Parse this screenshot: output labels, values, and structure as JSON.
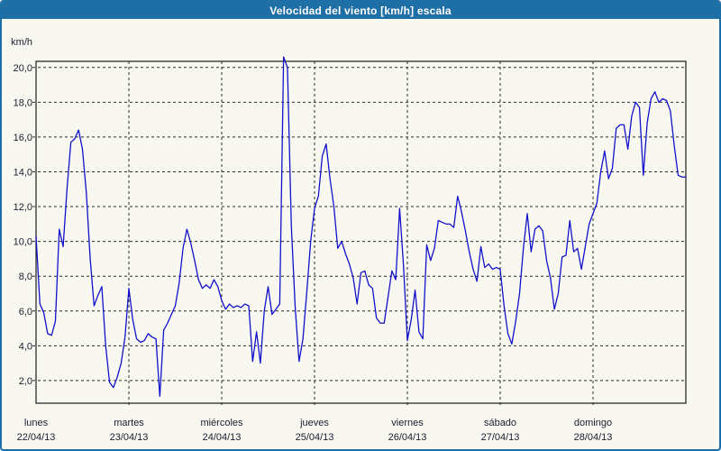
{
  "window": {
    "title": "Velocidad del viento [km/h] escala"
  },
  "colors": {
    "titlebar_bg": "#1d6fa5",
    "titlebar_text": "#ffffff",
    "panel_bg": "#f8f8f1",
    "panel_border": "#1d6fa5",
    "plot_border": "#1a1a1a",
    "grid": "#2b2b2b",
    "axis_text": "#1c1c30",
    "line": "#1212cc"
  },
  "chart_data": {
    "type": "line",
    "title": "Velocidad del viento [km/h] escala",
    "ylabel": "km/h",
    "grid": "dashed",
    "legend": "none",
    "y_axis": {
      "min": 0.7,
      "max": 20.35,
      "tick_step": 2,
      "ticks": [
        20,
        18,
        16,
        14,
        12,
        10,
        8,
        6,
        4,
        2
      ],
      "tick_labels": [
        "20,0",
        "18,0",
        "16,0",
        "14,0",
        "12,0",
        "10,0",
        "8,0",
        "6,0",
        "4,0",
        "2,0"
      ]
    },
    "x_axis": {
      "unit": "hours",
      "samples_per_day": 24,
      "days": [
        {
          "name": "lunes",
          "date": "22/04/13"
        },
        {
          "name": "martes",
          "date": "23/04/13"
        },
        {
          "name": "miércoles",
          "date": "24/04/13"
        },
        {
          "name": "jueves",
          "date": "25/04/13"
        },
        {
          "name": "viernes",
          "date": "26/04/13"
        },
        {
          "name": "sábado",
          "date": "27/04/13"
        },
        {
          "name": "domingo",
          "date": "28/04/13"
        }
      ]
    },
    "series": [
      {
        "name": "Velocidad del viento",
        "unit": "km/h",
        "values": [
          10.3,
          6.4,
          5.9,
          4.7,
          4.6,
          5.4,
          10.7,
          9.7,
          13.0,
          15.7,
          15.9,
          16.4,
          15.3,
          12.8,
          9.0,
          6.3,
          6.9,
          7.4,
          4.0,
          1.9,
          1.6,
          2.2,
          3.0,
          4.5,
          7.3,
          5.5,
          4.4,
          4.2,
          4.3,
          4.7,
          4.5,
          4.4,
          1.1,
          4.9,
          5.3,
          5.8,
          6.3,
          7.6,
          9.6,
          10.7,
          9.9,
          8.9,
          7.8,
          7.3,
          7.5,
          7.3,
          7.8,
          7.4,
          6.6,
          6.1,
          6.4,
          6.2,
          6.3,
          6.2,
          6.4,
          6.3,
          3.1,
          4.8,
          3.0,
          6.0,
          7.4,
          5.8,
          6.1,
          6.4,
          20.6,
          20.0,
          10.9,
          6.2,
          3.1,
          4.4,
          7.1,
          10.0,
          11.9,
          12.6,
          14.9,
          15.6,
          13.6,
          12.0,
          9.6,
          10.0,
          9.3,
          8.7,
          7.9,
          6.4,
          8.2,
          8.3,
          7.5,
          7.3,
          5.6,
          5.3,
          5.3,
          6.8,
          8.3,
          7.8,
          11.9,
          8.6,
          4.3,
          5.5,
          7.2,
          4.8,
          4.4,
          9.8,
          8.9,
          9.6,
          11.2,
          11.1,
          11.0,
          11.0,
          10.8,
          12.6,
          11.7,
          10.6,
          9.4,
          8.4,
          7.7,
          9.7,
          8.5,
          8.7,
          8.4,
          8.5,
          8.4,
          6.3,
          4.7,
          4.1,
          5.4,
          7.0,
          9.6,
          11.6,
          9.4,
          10.7,
          10.9,
          10.6,
          8.9,
          7.9,
          6.1,
          7.0,
          9.1,
          9.2,
          11.2,
          9.4,
          9.6,
          8.4,
          9.7,
          11.0,
          11.6,
          12.2,
          14.0,
          15.2,
          13.6,
          14.2,
          16.5,
          16.7,
          16.7,
          15.3,
          17.2,
          18.0,
          17.7,
          13.8,
          16.8,
          18.2,
          18.6,
          18.0,
          18.2,
          18.1,
          17.5,
          15.5,
          13.8,
          13.7,
          13.7
        ]
      }
    ]
  }
}
